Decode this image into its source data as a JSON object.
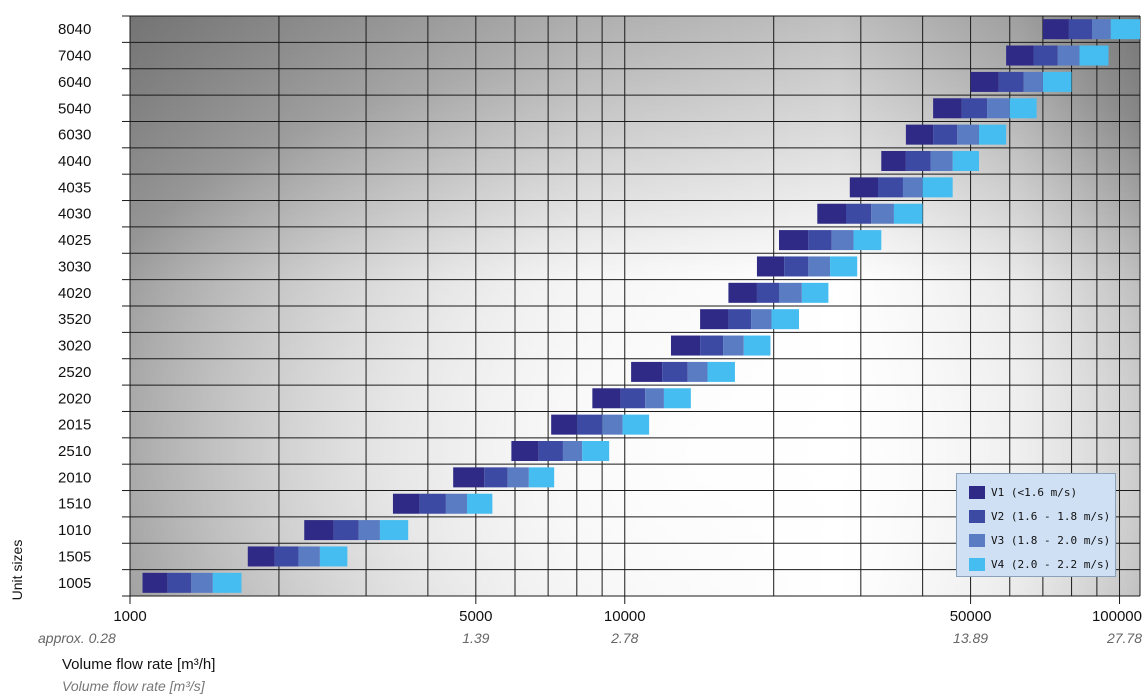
{
  "chart_data": {
    "type": "bar",
    "subtype": "horizontal floating stacked bars",
    "x_scale": "log",
    "xlim": [
      1000,
      110000
    ],
    "x_ticks_primary": [
      "1000",
      "5000",
      "10000",
      "50000",
      "100000"
    ],
    "x_tick_values": [
      1000,
      5000,
      10000,
      50000,
      100000
    ],
    "x_ticks_secondary": [
      "approx. 0.28",
      "1.39",
      "2.78",
      "13.89",
      "27.78"
    ],
    "xlabel": "Volume flow rate [m³/h]",
    "xlabel_secondary": "Volume flow rate [m³/s]",
    "ylabel": "Unit sizes",
    "categories": [
      "8040",
      "7040",
      "6040",
      "5040",
      "6030",
      "4040",
      "4035",
      "4030",
      "4025",
      "3030",
      "4020",
      "3520",
      "3020",
      "2520",
      "2020",
      "2015",
      "2510",
      "2010",
      "1510",
      "1010",
      "1505",
      "1005"
    ],
    "series": [
      {
        "name": "V1 (<1.6 m/s)",
        "color": "#2e2a85",
        "start": [
          70000,
          59000,
          50000,
          42000,
          37000,
          33000,
          28500,
          24500,
          20500,
          18500,
          16200,
          14200,
          12400,
          10300,
          8600,
          7100,
          5900,
          4500,
          3400,
          2250,
          1730,
          1060
        ],
        "end": [
          79000,
          67000,
          57000,
          48000,
          42000,
          37000,
          32500,
          28000,
          23500,
          21000,
          18500,
          16200,
          14200,
          11900,
          9800,
          8000,
          6700,
          5200,
          3850,
          2580,
          1960,
          1190
        ]
      },
      {
        "name": "V2 (1.6 - 1.8 m/s)",
        "color": "#3c4aa3",
        "start": [
          79000,
          67000,
          57000,
          48000,
          42000,
          37000,
          32500,
          28000,
          23500,
          21000,
          18500,
          16200,
          14200,
          11900,
          9800,
          8000,
          6700,
          5200,
          3850,
          2580,
          1960,
          1190
        ],
        "end": [
          88000,
          75000,
          64000,
          54000,
          47000,
          41500,
          36500,
          31500,
          26200,
          23500,
          20500,
          18000,
          15800,
          13400,
          11000,
          9000,
          7500,
          5800,
          4350,
          2900,
          2190,
          1330
        ]
      },
      {
        "name": "V3 (1.8 - 2.0 m/s)",
        "color": "#5a7cc3",
        "start": [
          88000,
          75000,
          64000,
          54000,
          47000,
          41500,
          36500,
          31500,
          26200,
          23500,
          20500,
          18000,
          15800,
          13400,
          11000,
          9000,
          7500,
          5800,
          4350,
          2900,
          2190,
          1330
        ],
        "end": [
          96000,
          83000,
          70000,
          60000,
          52000,
          46000,
          40000,
          35000,
          29000,
          26000,
          22800,
          19800,
          17400,
          14700,
          12000,
          9900,
          8200,
          6400,
          4800,
          3200,
          2420,
          1470
        ]
      },
      {
        "name": "V4 (2.0 - 2.2 m/s)",
        "color": "#45bdf0",
        "start": [
          96000,
          83000,
          70000,
          60000,
          52000,
          46000,
          40000,
          35000,
          29000,
          26000,
          22800,
          19800,
          17400,
          14700,
          12000,
          9900,
          8200,
          6400,
          4800,
          3200,
          2420,
          1470
        ],
        "end": [
          110000,
          95000,
          80000,
          68000,
          59000,
          52000,
          46000,
          40000,
          33000,
          29500,
          25800,
          22500,
          19700,
          16700,
          13600,
          11200,
          9300,
          7200,
          5400,
          3650,
          2750,
          1680
        ]
      }
    ],
    "grid": true,
    "legend_position": "bottom-right"
  }
}
